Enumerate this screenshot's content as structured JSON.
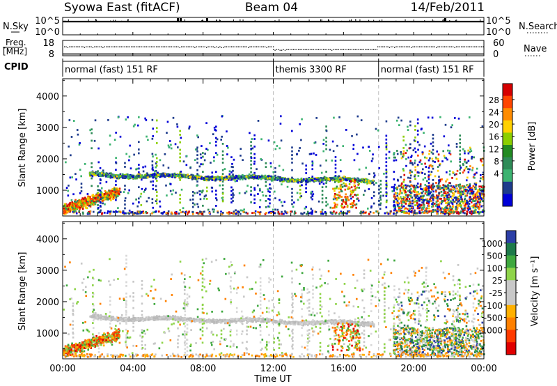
{
  "header": {
    "title": "Syowa East (fitACF)",
    "beam": "Beam 04",
    "date": "14/Feb/2011"
  },
  "nsky_panel": {
    "left_label": "N.Sky",
    "right_label": "N.Search",
    "left_ticks": [
      "10^5",
      "10^0"
    ],
    "right_ticks": [
      "10^5",
      "10^0"
    ]
  },
  "freq_panel": {
    "label_line1": "Freq.",
    "label_line2": "[MHz]",
    "left_ticks": [
      "18",
      "8"
    ],
    "right_ticks": [
      "60",
      "0"
    ],
    "right_label": "Nave"
  },
  "cpid": {
    "label": "CPID",
    "segments": [
      {
        "start_hour": 0,
        "end_hour": 12,
        "text": "normal (fast) 151 RF"
      },
      {
        "start_hour": 12,
        "end_hour": 18,
        "text": "themis 3300 RF"
      },
      {
        "start_hour": 18,
        "end_hour": 24,
        "text": "normal (fast) 151 RF"
      }
    ]
  },
  "chart_data": [
    {
      "type": "heatmap",
      "quantity": "power",
      "ylabel": "Slant Range [km]",
      "yticks": [
        1000,
        2000,
        3000,
        4000
      ],
      "ylim": [
        180,
        4550
      ],
      "xlim": [
        0,
        24
      ],
      "colorbar": {
        "label": "Power [dB]",
        "ticks": [
          "28",
          "24",
          "20",
          "16",
          "12",
          "8",
          "4"
        ],
        "colors": [
          "#d60000",
          "#ff4500",
          "#ff8c00",
          "#ffd100",
          "#8ccf00",
          "#228b22",
          "#2e8b57",
          "#3cb371",
          "#1e3c8c",
          "#0000d8"
        ]
      },
      "features": [
        {
          "hours": [
            1.5,
            12
          ],
          "range_km": [
            1400,
            1600
          ],
          "level": "12"
        },
        {
          "hours": [
            0,
            3
          ],
          "range_km": [
            400,
            1100
          ],
          "level": "24"
        },
        {
          "hours": [
            19,
            24
          ],
          "range_km": [
            300,
            1200
          ],
          "level": "20"
        }
      ]
    },
    {
      "type": "heatmap",
      "quantity": "velocity",
      "xlabel": "Time UT",
      "ylabel": "Slant Range [km]",
      "yticks": [
        1000,
        2000,
        3000,
        4000
      ],
      "ylim": [
        180,
        4550
      ],
      "xlim": [
        0,
        24
      ],
      "xticks": [
        "00:00",
        "04:00",
        "08:00",
        "12:00",
        "16:00",
        "20:00",
        "00:00"
      ],
      "colorbar": {
        "label": "Velocity [m s⁻¹]",
        "ticks": [
          "1000",
          "500",
          "100",
          "25",
          "-25",
          "-100",
          "-500",
          "-1000"
        ],
        "colors": [
          "#2c3ea6",
          "#1e7a4a",
          "#3fa83f",
          "#8fd44a",
          "#c8c8c8",
          "#c8c8c8",
          "#ffb000",
          "#ff8000",
          "#ff3a00",
          "#e00000"
        ]
      }
    }
  ]
}
